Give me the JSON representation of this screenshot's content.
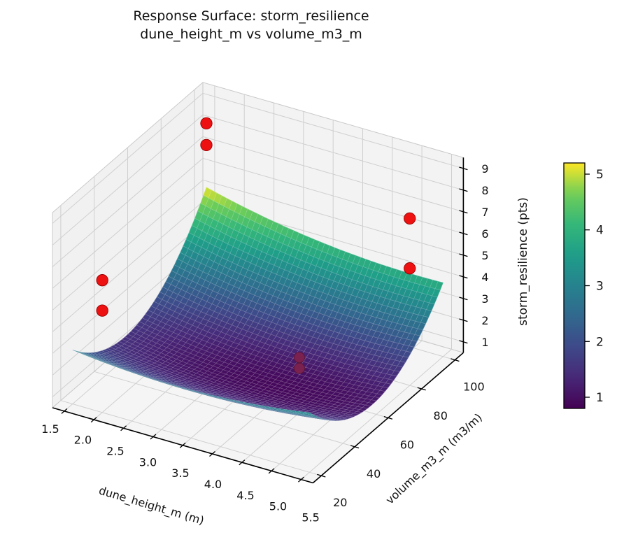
{
  "title": {
    "line1": "Response Surface: storm_resilience",
    "line2": "dune_height_m vs volume_m3_m"
  },
  "axes": {
    "x": {
      "label": "dune_height_m (m)",
      "tick_labels": [
        "1.5",
        "2.0",
        "2.5",
        "3.0",
        "3.5",
        "4.0",
        "4.5",
        "5.0",
        "5.5"
      ],
      "range": [
        1.3,
        5.7
      ]
    },
    "y": {
      "label": "volume_m3_m (m3/m)",
      "tick_labels": [
        "20",
        "40",
        "60",
        "80",
        "100"
      ],
      "range": [
        15,
        105
      ]
    },
    "z": {
      "label": "storm_resilience (pts)",
      "tick_labels": [
        "1",
        "2",
        "3",
        "4",
        "5",
        "6",
        "7",
        "8",
        "9"
      ],
      "range": [
        0.5,
        9.5
      ]
    }
  },
  "colorbar": {
    "tick_labels": [
      "1",
      "2",
      "3",
      "4",
      "5"
    ],
    "vmin": 0.8,
    "vmax": 5.2,
    "colormap": "viridis"
  },
  "chart_data": {
    "type": "surface_3d",
    "title": "Response Surface: storm_resilience — dune_height_m vs volume_m3_m",
    "xlabel": "dune_height_m (m)",
    "ylabel": "volume_m3_m (m3/m)",
    "zlabel": "storm_resilience (pts)",
    "x_domain": [
      1.5,
      5.5
    ],
    "y_domain": [
      20,
      100
    ],
    "z_surface_range": [
      0.9,
      5.15
    ],
    "camera": {
      "azim": -60,
      "elev": 30
    },
    "surface_model": {
      "description": "z = z0 + a*(x-x0)^2 + b*(y-y0)^2 + c*(x-x0)*(y-y0); bowl with minimum 0.9 at (4.0, 55), peak 5.15 at (1.5, 100)",
      "z0": 0.9,
      "a": 0.1,
      "b": 0.00153,
      "c": -0.0047,
      "x0": 4.0,
      "y0": 55.0
    },
    "scatter_points": [
      {
        "dune_height_m": 1.5,
        "volume_m3_m": 100,
        "storm_resilience": 8.1,
        "occluded": false
      },
      {
        "dune_height_m": 1.5,
        "volume_m3_m": 100,
        "storm_resilience": 7.1,
        "occluded": false
      },
      {
        "dune_height_m": 5.5,
        "volume_m3_m": 80,
        "storm_resilience": 8.2,
        "occluded": false
      },
      {
        "dune_height_m": 5.5,
        "volume_m3_m": 80,
        "storm_resilience": 5.9,
        "occluded": false
      },
      {
        "dune_height_m": 2.0,
        "volume_m3_m": 20,
        "storm_resilience": 6.6,
        "occluded": false
      },
      {
        "dune_height_m": 2.0,
        "volume_m3_m": 20,
        "storm_resilience": 5.2,
        "occluded": false
      },
      {
        "dune_height_m": 4.2,
        "volume_m3_m": 60,
        "storm_resilience": 2.1,
        "occluded": true
      },
      {
        "dune_height_m": 4.2,
        "volume_m3_m": 60,
        "storm_resilience": 1.6,
        "occluded": true
      }
    ],
    "viridis_stops": [
      [
        0.0,
        "#440154"
      ],
      [
        0.125,
        "#482878"
      ],
      [
        0.25,
        "#3e4989"
      ],
      [
        0.375,
        "#31688e"
      ],
      [
        0.5,
        "#26828e"
      ],
      [
        0.625,
        "#1f9e89"
      ],
      [
        0.75,
        "#35b779"
      ],
      [
        0.875,
        "#6ece58"
      ],
      [
        1.0,
        "#fde725"
      ]
    ]
  },
  "colors": {
    "scatter_red": "#ee1111",
    "scatter_red_edge": "#990000",
    "scatter_occluded": "#7a2150",
    "scatter_occluded_edge": "#5c1538",
    "pane_left": "#f1f1f2",
    "pane_right": "#f3f3f4",
    "pane_floor": "#f5f5f6",
    "grid": "#cfcfcf",
    "pane_edge": "#c9c9c9",
    "spine": "#000000",
    "text": "#111111",
    "background": "#ffffff"
  }
}
